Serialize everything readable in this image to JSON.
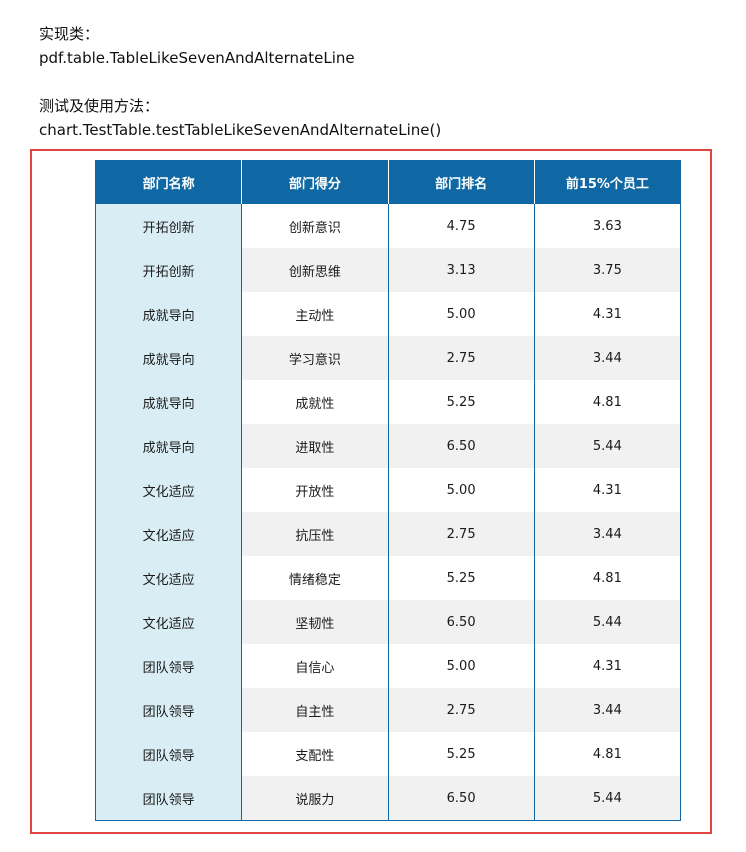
{
  "doc": {
    "impl_label": "实现类：",
    "impl_class": "pdf.table.TableLikeSevenAndAlternateLine",
    "test_label": "测试及使用方法：",
    "test_method": "chart.TestTable.testTableLikeSevenAndAlternateLine()"
  },
  "colors": {
    "header_bg": "#0f68a3",
    "first_col_bg": "#d9eef4",
    "alt_row_bg": "#f1f1f1",
    "frame_border": "#e0463f"
  },
  "table": {
    "headers": [
      "部门名称",
      "部门得分",
      "部门排名",
      "前15%个员工"
    ],
    "rows": [
      [
        "开拓创新",
        "创新意识",
        "4.75",
        "3.63"
      ],
      [
        "开拓创新",
        "创新思维",
        "3.13",
        "3.75"
      ],
      [
        "成就导向",
        "主动性",
        "5.00",
        "4.31"
      ],
      [
        "成就导向",
        "学习意识",
        "2.75",
        "3.44"
      ],
      [
        "成就导向",
        "成就性",
        "5.25",
        "4.81"
      ],
      [
        "成就导向",
        "进取性",
        "6.50",
        "5.44"
      ],
      [
        "文化适应",
        "开放性",
        "5.00",
        "4.31"
      ],
      [
        "文化适应",
        "抗压性",
        "2.75",
        "3.44"
      ],
      [
        "文化适应",
        "情绪稳定",
        "5.25",
        "4.81"
      ],
      [
        "文化适应",
        "坚韧性",
        "6.50",
        "5.44"
      ],
      [
        "团队领导",
        "自信心",
        "5.00",
        "4.31"
      ],
      [
        "团队领导",
        "自主性",
        "2.75",
        "3.44"
      ],
      [
        "团队领导",
        "支配性",
        "5.25",
        "4.81"
      ],
      [
        "团队领导",
        "说服力",
        "6.50",
        "5.44"
      ]
    ]
  }
}
